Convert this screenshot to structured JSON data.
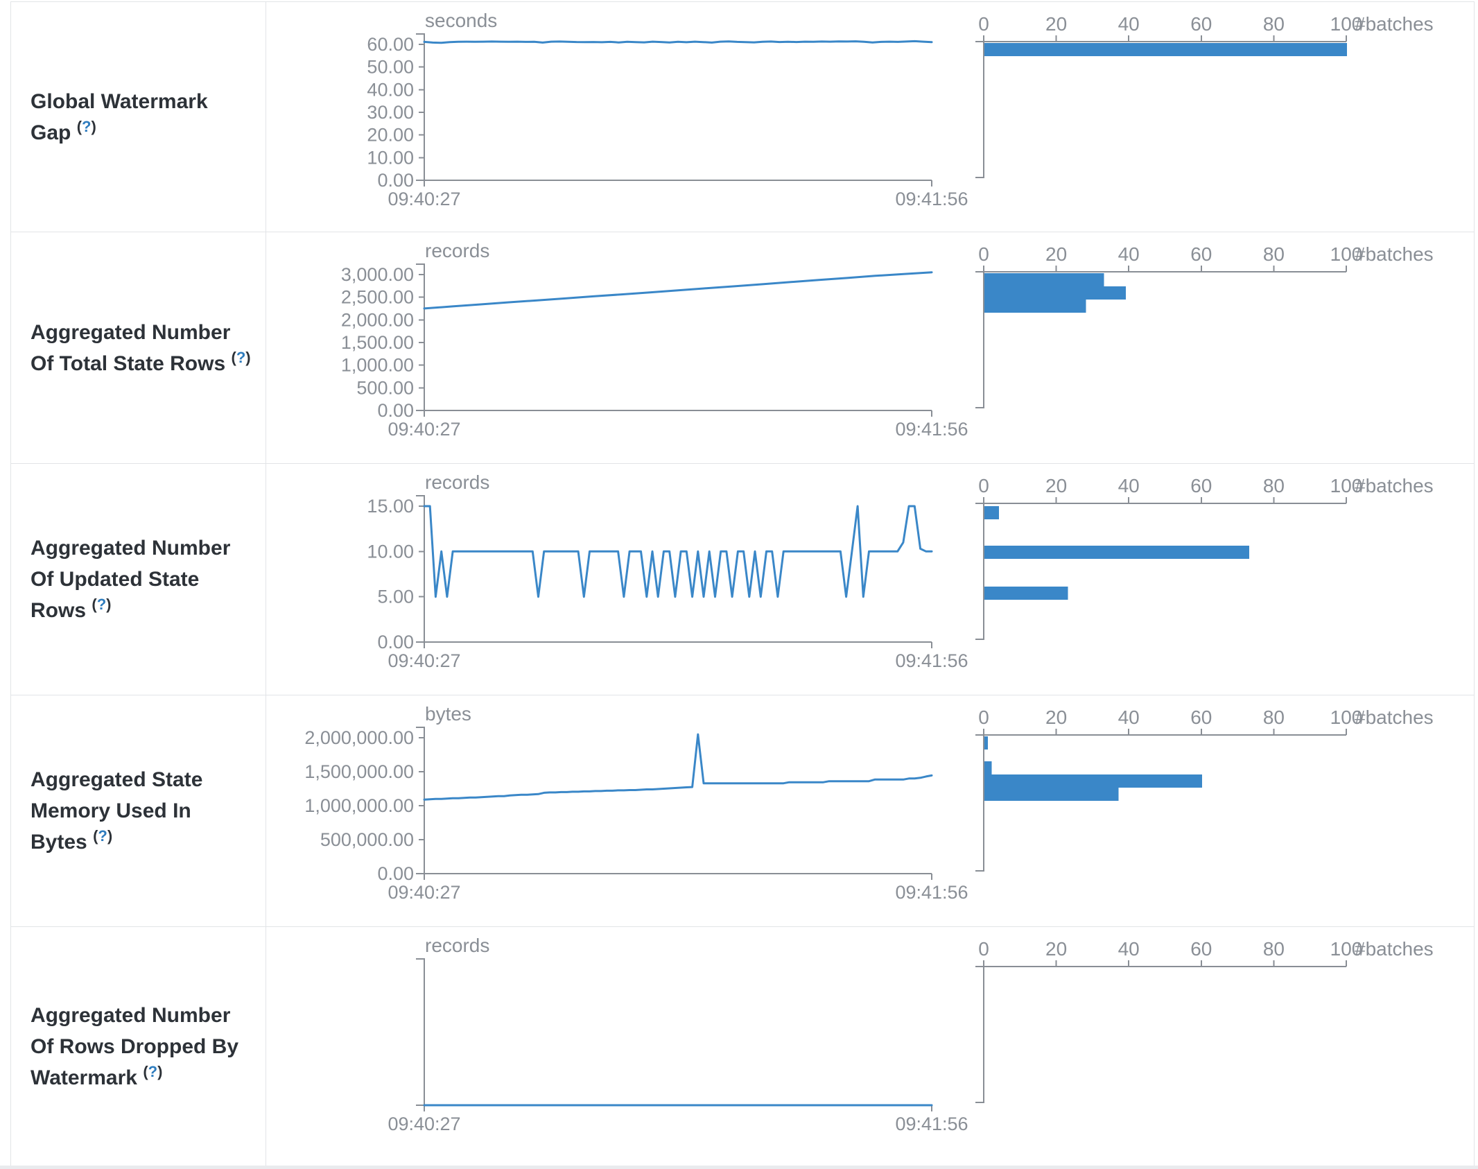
{
  "colors": {
    "accent": "#3a87c8",
    "axis": "#898e95",
    "axis_text": "#8a8f96",
    "label_text": "#2d3238",
    "help_link": "#2e7cbe",
    "border": "#e2e4e7"
  },
  "x_axis": {
    "start": "09:40:27",
    "end": "09:41:56"
  },
  "hist_axis": {
    "ticks": [
      "0",
      "20",
      "40",
      "60",
      "80",
      "100"
    ],
    "label": "#batches"
  },
  "chart_data": [
    {
      "type": "line+bar",
      "label": "Global Watermark Gap",
      "help": "(?)",
      "slug": "global-watermark-gap",
      "unit": "seconds",
      "tick_max": 60,
      "y_tick_labels": [
        "60.00",
        "50.00",
        "40.00",
        "30.00",
        "20.00",
        "10.00",
        "0.00"
      ],
      "series": [
        61.1,
        60.8,
        60.7,
        61.0,
        61.15,
        61.2,
        61.15,
        61.2,
        61.25,
        61.2,
        61.15,
        61.2,
        61.1,
        61.15,
        60.8,
        61.2,
        61.25,
        61.15,
        61.05,
        61.0,
        61.05,
        60.95,
        61.1,
        60.85,
        61.15,
        61.0,
        60.9,
        61.2,
        61.05,
        60.85,
        61.15,
        60.95,
        61.2,
        61.0,
        60.8,
        61.2,
        61.3,
        61.1,
        61.0,
        60.9,
        61.15,
        61.25,
        61.05,
        61.15,
        61.05,
        61.2,
        61.15,
        61.25,
        61.2,
        61.3,
        61.25,
        61.35,
        61.15,
        60.85,
        61.1,
        61.2,
        61.1,
        61.25,
        61.4,
        61.2,
        61.0
      ],
      "hist_bars": [
        {
          "count": 100,
          "offset": 2
        }
      ]
    },
    {
      "type": "line+bar",
      "label": "Aggregated Number Of Total State Rows",
      "help": "(?)",
      "slug": "aggregated-number-of-total-state-rows",
      "unit": "records",
      "tick_max": 3000,
      "y_tick_labels": [
        "3,000.00",
        "2,500.00",
        "2,000.00",
        "1,500.00",
        "1,000.00",
        "500.00",
        "0.00"
      ],
      "series": [
        2252,
        2297,
        2342,
        2388,
        2430,
        2474,
        2520,
        2562,
        2605,
        2652,
        2698,
        2742,
        2788,
        2835,
        2880,
        2925,
        2972,
        3012,
        3051
      ],
      "hist_bars": [
        {
          "count": 33,
          "offset": 2
        },
        {
          "count": 39,
          "offset": 21
        },
        {
          "count": 28,
          "offset": 40
        }
      ]
    },
    {
      "type": "line+bar",
      "label": "Aggregated Number Of Updated State Rows",
      "help": "(?)",
      "slug": "aggregated-number-of-updated-state-rows",
      "unit": "records",
      "tick_max": 15,
      "y_tick_labels": [
        "15.00",
        "10.00",
        "5.00",
        "0.00"
      ],
      "series": [
        15,
        15,
        5,
        10,
        5,
        10,
        10,
        10,
        10,
        10,
        10,
        10,
        10,
        10,
        10,
        10,
        10,
        10,
        10,
        10,
        5,
        10,
        10,
        10,
        10,
        10,
        10,
        10,
        5,
        10,
        10,
        10,
        10,
        10,
        10,
        5,
        10,
        10,
        10,
        5,
        10,
        5,
        10,
        10,
        5,
        10,
        10,
        5,
        10,
        5,
        10,
        5,
        10,
        10,
        5,
        10,
        10,
        5,
        10,
        5,
        10,
        10,
        5,
        10,
        10,
        10,
        10,
        10,
        10,
        10,
        10,
        10,
        10,
        10,
        5,
        10,
        15,
        5,
        10,
        10,
        10,
        10,
        10,
        10,
        11,
        15,
        15,
        10.3,
        10,
        10
      ],
      "hist_bars": [
        {
          "count": 4,
          "offset": 4
        },
        {
          "count": 73,
          "offset": 61
        },
        {
          "count": 23,
          "offset": 120
        }
      ]
    },
    {
      "type": "line+bar",
      "label": "Aggregated State Memory Used In Bytes",
      "help": "(?)",
      "slug": "aggregated-state-memory-used-in-bytes",
      "unit": "bytes",
      "tick_max": 2000000,
      "y_tick_labels": [
        "2,000,000.00",
        "1,500,000.00",
        "1,000,000.00",
        "500,000.00",
        "0.00"
      ],
      "series": [
        1090000,
        1095000,
        1100000,
        1100000,
        1105000,
        1110000,
        1110000,
        1115000,
        1120000,
        1120000,
        1125000,
        1130000,
        1135000,
        1140000,
        1140000,
        1150000,
        1155000,
        1160000,
        1160000,
        1165000,
        1170000,
        1190000,
        1195000,
        1195000,
        1200000,
        1200000,
        1205000,
        1205000,
        1210000,
        1210000,
        1215000,
        1215000,
        1220000,
        1220000,
        1225000,
        1225000,
        1230000,
        1230000,
        1235000,
        1240000,
        1240000,
        1245000,
        1250000,
        1255000,
        1260000,
        1265000,
        1270000,
        1275000,
        2050000,
        1330000,
        1330000,
        1330000,
        1330000,
        1330000,
        1330000,
        1330000,
        1330000,
        1330000,
        1330000,
        1330000,
        1330000,
        1330000,
        1330000,
        1330000,
        1345000,
        1345000,
        1345000,
        1345000,
        1345000,
        1345000,
        1345000,
        1360000,
        1360000,
        1360000,
        1360000,
        1360000,
        1360000,
        1360000,
        1360000,
        1385000,
        1385000,
        1385000,
        1385000,
        1385000,
        1385000,
        1400000,
        1400000,
        1410000,
        1430000,
        1445000
      ],
      "hist_bars": [
        {
          "count": 1,
          "offset": 2
        },
        {
          "count": 2,
          "offset": 38
        },
        {
          "count": 60,
          "offset": 57
        },
        {
          "count": 37,
          "offset": 76
        }
      ]
    },
    {
      "type": "line+bar",
      "label": "Aggregated Number Of Rows Dropped By Watermark",
      "help": "(?)",
      "slug": "aggregated-number-of-rows-dropped-by-watermark",
      "unit": "records",
      "tick_max": 1,
      "y_tick_labels": [],
      "series": [
        0,
        0
      ],
      "hist_bars": []
    }
  ]
}
